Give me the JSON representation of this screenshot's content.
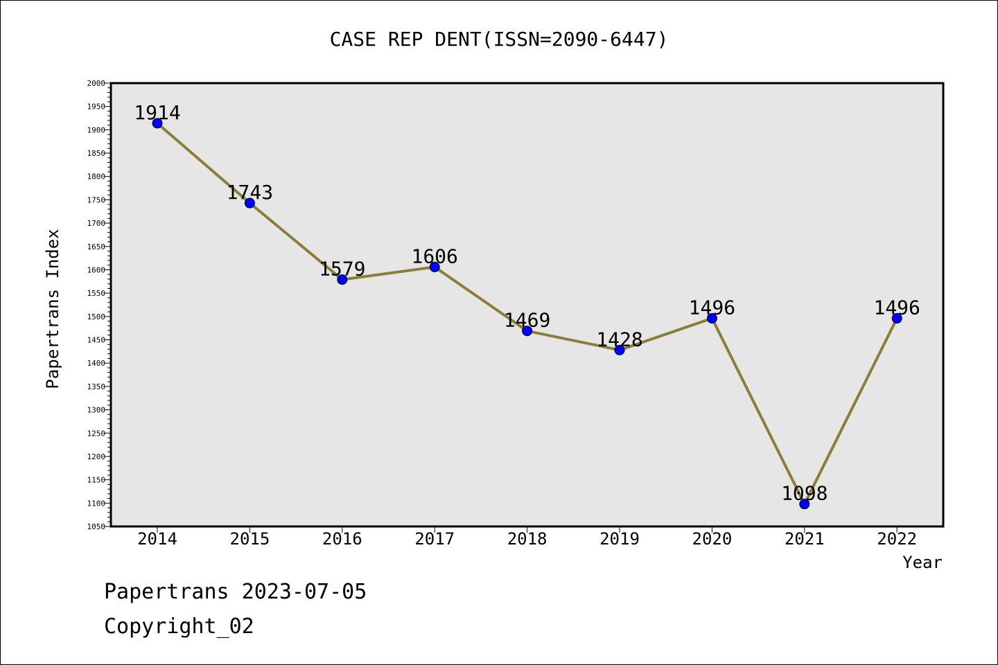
{
  "chart_data": {
    "type": "line",
    "title": "CASE REP DENT(ISSN=2090-6447)",
    "xlabel": "Year",
    "ylabel": "Papertrans Index",
    "categories": [
      "2014",
      "2015",
      "2016",
      "2017",
      "2018",
      "2019",
      "2020",
      "2021",
      "2022"
    ],
    "series": [
      {
        "values": [
          1914,
          1743,
          1579,
          1606,
          1469,
          1428,
          1496,
          1098,
          1496
        ]
      }
    ],
    "data_labels": [
      "1914",
      "1743",
      "1579",
      "1606",
      "1469",
      "1428",
      "1496",
      "1098",
      "1496"
    ],
    "ylim": [
      1050,
      2000
    ],
    "yticks": [
      1050,
      1100,
      1150,
      1200,
      1250,
      1300,
      1350,
      1400,
      1450,
      1500,
      1550,
      1600,
      1650,
      1700,
      1750,
      1800,
      1850,
      1900,
      1950,
      2000
    ],
    "ytick_labels": [
      "1050",
      "1100",
      "1150",
      "1200",
      "1250",
      "1300",
      "1350",
      "1400",
      "1450",
      "1500",
      "1550",
      "1600",
      "1650",
      "1700",
      "1750",
      "1800",
      "1850",
      "1900",
      "1950",
      "2000"
    ],
    "grid": false,
    "colors": {
      "line": "#8b7d3a",
      "marker": "#0000ff",
      "plot_background": "#e6e6e6"
    }
  },
  "footer": {
    "line1": "Papertrans 2023-07-05",
    "line2": "Copyright_02"
  }
}
